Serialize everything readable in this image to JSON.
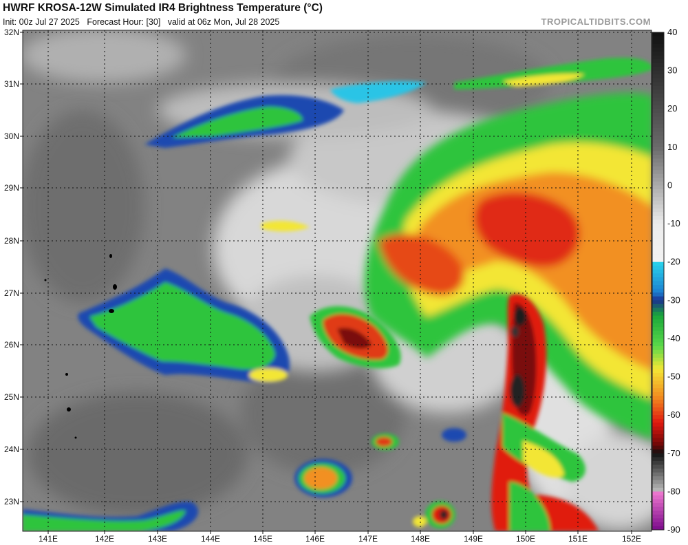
{
  "header": {
    "title": "HWRF KROSA-12W Simulated IR4 Brightness Temperature (°C)",
    "init": "Init: 00z Jul 27 2025",
    "forecast_hour": "Forecast Hour: [30]",
    "valid": "valid at 06z Mon, Jul 28 2025",
    "brand": "TROPICALTIDBITS.COM"
  },
  "map": {
    "lat_labels": [
      "32N",
      "31N",
      "30N",
      "29N",
      "28N",
      "27N",
      "26N",
      "25N",
      "24N",
      "23N"
    ],
    "lon_labels": [
      "141E",
      "142E",
      "143E",
      "144E",
      "145E",
      "146E",
      "147E",
      "148E",
      "149E",
      "150E",
      "151E",
      "152E"
    ],
    "colors": {
      "background": "#808080",
      "ocean_gray": "#7a7a7a",
      "cloud_white": "#e6e6e6",
      "cyan": "#29c4e6",
      "blue": "#1c3fa8",
      "green": "#22c53a",
      "yellow": "#f0e830",
      "orange": "#f08a1e",
      "red": "#e02010",
      "darkred": "#7a0a0a",
      "black": "#111111"
    }
  },
  "colorbar": {
    "labels": [
      "40",
      "30",
      "20",
      "10",
      "0",
      "-10",
      "-20",
      "-30",
      "-40",
      "-50",
      "-60",
      "-70",
      "-80",
      "-90"
    ],
    "range": [
      -90,
      40
    ]
  }
}
